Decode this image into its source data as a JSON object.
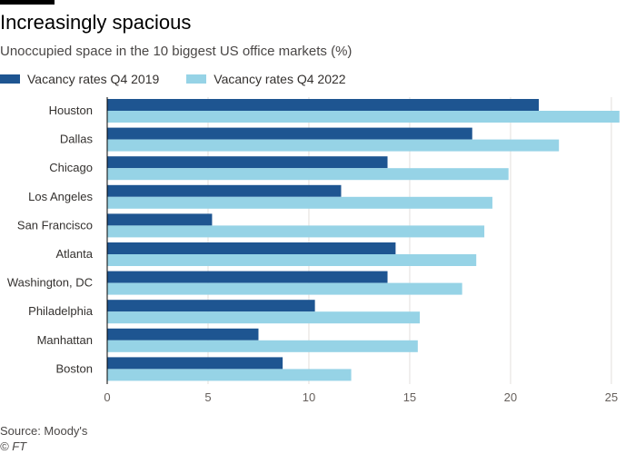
{
  "header": {
    "title": "Increasingly spacious",
    "subtitle": "Unoccupied space in the 10 biggest US office markets (%)"
  },
  "footer": {
    "source": "Source: Moody's",
    "credit": "© FT"
  },
  "colors": {
    "series_2019": "#1e5591",
    "series_2022": "#96d3e6",
    "gridline": "#e3e0dc",
    "baseline": "#000000"
  },
  "chart_data": {
    "type": "bar",
    "orientation": "horizontal",
    "title": "Increasingly spacious",
    "xlabel": "",
    "ylabel": "",
    "xlim": [
      0,
      25.5
    ],
    "xticks": [
      0,
      5,
      10,
      15,
      20,
      25
    ],
    "grid": true,
    "legend_position": "top-left",
    "categories": [
      "Houston",
      "Dallas",
      "Chicago",
      "Los Angeles",
      "San Francisco",
      "Atlanta",
      "Washington, DC",
      "Philadelphia",
      "Manhattan",
      "Boston"
    ],
    "series": [
      {
        "name": "Vacancy rates Q4 2019",
        "color": "#1e5591",
        "values": [
          21.4,
          18.1,
          13.9,
          11.6,
          5.2,
          14.3,
          13.9,
          10.3,
          7.5,
          8.7
        ]
      },
      {
        "name": "Vacancy rates Q4 2022",
        "color": "#96d3e6",
        "values": [
          25.4,
          22.4,
          19.9,
          19.1,
          18.7,
          18.3,
          17.6,
          15.5,
          15.4,
          12.1
        ]
      }
    ]
  }
}
